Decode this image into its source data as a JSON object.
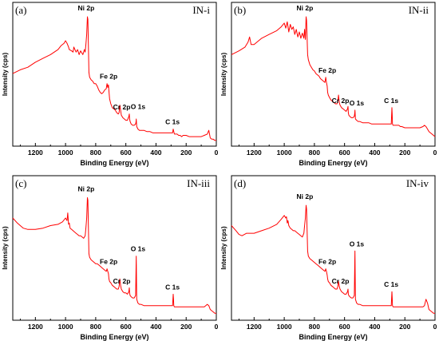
{
  "chart_data": [
    {
      "type": "line",
      "panel": "(a)",
      "sample": "IN-i",
      "xlabel": "Binding Energy (eV)",
      "ylabel": "Intensity (cps)",
      "xlim": [
        1350,
        0
      ],
      "x_reversed": true,
      "xticks": [
        1200,
        1000,
        800,
        600,
        400,
        200,
        0
      ],
      "color": "#ff0000",
      "series": [
        {
          "x": [
            1350,
            1300,
            1250,
            1200,
            1150,
            1100,
            1050,
            1030,
            1010,
            1000,
            990,
            980,
            975,
            960,
            950,
            945,
            930,
            920,
            910,
            900,
            885,
            875,
            870,
            865,
            860,
            855,
            852,
            845,
            840,
            830,
            820,
            810,
            800,
            790,
            780,
            770,
            760,
            750,
            740,
            730,
            725,
            720,
            715,
            712,
            708,
            700,
            690,
            680,
            670,
            660,
            650,
            645,
            640,
            635,
            630,
            620,
            610,
            600,
            590,
            580,
            577,
            575,
            572,
            565,
            555,
            545,
            535,
            532,
            531,
            528,
            520,
            510,
            500,
            480,
            460,
            440,
            420,
            400,
            380,
            360,
            340,
            320,
            300,
            290,
            286,
            284,
            282,
            278,
            270,
            260,
            250,
            240,
            230,
            220,
            200,
            180,
            160,
            140,
            120,
            100,
            80,
            60,
            50,
            40,
            30,
            20,
            10,
            0
          ],
          "y": [
            0.55,
            0.58,
            0.6,
            0.64,
            0.67,
            0.7,
            0.74,
            0.77,
            0.79,
            0.81,
            0.79,
            0.76,
            0.74,
            0.73,
            0.72,
            0.76,
            0.72,
            0.74,
            0.7,
            0.73,
            0.7,
            0.74,
            0.72,
            0.78,
            0.86,
            1.0,
            0.98,
            0.56,
            0.52,
            0.5,
            0.49,
            0.47,
            0.47,
            0.45,
            0.42,
            0.4,
            0.39,
            0.4,
            0.42,
            0.43,
            0.47,
            0.44,
            0.46,
            0.41,
            0.35,
            0.31,
            0.28,
            0.27,
            0.26,
            0.24,
            0.23,
            0.24,
            0.3,
            0.26,
            0.22,
            0.2,
            0.19,
            0.18,
            0.18,
            0.21,
            0.23,
            0.19,
            0.17,
            0.15,
            0.14,
            0.14,
            0.15,
            0.17,
            0.19,
            0.13,
            0.11,
            0.1,
            0.1,
            0.1,
            0.09,
            0.09,
            0.08,
            0.08,
            0.08,
            0.08,
            0.08,
            0.08,
            0.08,
            0.08,
            0.11,
            0.1,
            0.09,
            0.07,
            0.07,
            0.07,
            0.06,
            0.06,
            0.05,
            0.06,
            0.06,
            0.05,
            0.05,
            0.05,
            0.05,
            0.05,
            0.06,
            0.07,
            0.1,
            0.04,
            0.03,
            0.03,
            0.02,
            0.02
          ]
        }
      ],
      "annotations": [
        {
          "text": "Ni 2p",
          "x": 855,
          "y": 1.0
        },
        {
          "text": "Fe 2p",
          "x": 720,
          "y": 0.47
        },
        {
          "text": "O 1s",
          "x": 531,
          "y": 0.23
        },
        {
          "text": "Cr 2p",
          "x": 600,
          "y": 0.24
        },
        {
          "text": "C 1s",
          "x": 285,
          "y": 0.11
        }
      ]
    },
    {
      "type": "line",
      "panel": "(b)",
      "sample": "IN-ii",
      "xlabel": "Binding Energy (eV)",
      "ylabel": "Intensity (cps)",
      "xlim": [
        1350,
        0
      ],
      "x_reversed": true,
      "xticks": [
        1200,
        1000,
        800,
        600,
        400,
        200,
        0
      ],
      "color": "#ff0000",
      "series": [
        {
          "x": [
            1350,
            1300,
            1260,
            1240,
            1230,
            1220,
            1200,
            1150,
            1100,
            1050,
            1020,
            1000,
            990,
            980,
            970,
            960,
            950,
            940,
            930,
            920,
            910,
            900,
            890,
            880,
            870,
            865,
            860,
            855,
            852,
            845,
            840,
            830,
            820,
            810,
            800,
            790,
            780,
            770,
            760,
            750,
            740,
            730,
            725,
            720,
            715,
            712,
            708,
            700,
            690,
            680,
            670,
            660,
            650,
            645,
            640,
            635,
            630,
            620,
            610,
            600,
            590,
            580,
            577,
            575,
            572,
            565,
            555,
            545,
            535,
            532,
            531,
            528,
            520,
            510,
            500,
            480,
            460,
            440,
            420,
            400,
            380,
            360,
            340,
            320,
            300,
            290,
            286,
            284,
            282,
            278,
            270,
            260,
            250,
            240,
            230,
            220,
            200,
            180,
            160,
            140,
            120,
            100,
            80,
            70,
            60,
            50,
            40,
            30,
            20,
            10,
            0
          ],
          "y": [
            0.7,
            0.73,
            0.76,
            0.8,
            0.84,
            0.78,
            0.78,
            0.83,
            0.86,
            0.89,
            0.92,
            0.95,
            0.91,
            0.96,
            0.88,
            0.94,
            0.9,
            0.92,
            0.86,
            0.9,
            0.84,
            0.88,
            0.83,
            0.87,
            0.83,
            0.9,
            0.82,
            1.0,
            0.97,
            0.7,
            0.66,
            0.62,
            0.6,
            0.58,
            0.57,
            0.55,
            0.54,
            0.53,
            0.51,
            0.5,
            0.49,
            0.48,
            0.52,
            0.48,
            0.45,
            0.4,
            0.38,
            0.36,
            0.34,
            0.33,
            0.32,
            0.31,
            0.31,
            0.33,
            0.38,
            0.32,
            0.3,
            0.28,
            0.27,
            0.26,
            0.25,
            0.27,
            0.29,
            0.24,
            0.22,
            0.21,
            0.2,
            0.2,
            0.21,
            0.24,
            0.26,
            0.19,
            0.18,
            0.17,
            0.17,
            0.16,
            0.16,
            0.16,
            0.15,
            0.15,
            0.15,
            0.15,
            0.15,
            0.15,
            0.15,
            0.15,
            0.28,
            0.22,
            0.15,
            0.14,
            0.14,
            0.14,
            0.14,
            0.14,
            0.13,
            0.13,
            0.12,
            0.12,
            0.12,
            0.12,
            0.12,
            0.12,
            0.13,
            0.14,
            0.13,
            0.11,
            0.09,
            0.08,
            0.07,
            0.06,
            0.05
          ]
        }
      ],
      "annotations": [
        {
          "text": "Ni 2p",
          "x": 855,
          "y": 1.0
        },
        {
          "text": "Fe 2p",
          "x": 720,
          "y": 0.52
        },
        {
          "text": "O 1s",
          "x": 531,
          "y": 0.26
        },
        {
          "text": "Cr 2p",
          "x": 600,
          "y": 0.29
        },
        {
          "text": "C 1s",
          "x": 285,
          "y": 0.28
        }
      ]
    },
    {
      "type": "line",
      "panel": "(c)",
      "sample": "IN-iii",
      "xlabel": "Binding Energy (eV)",
      "ylabel": "Intensity (cps)",
      "xlim": [
        1350,
        0
      ],
      "x_reversed": true,
      "xticks": [
        1200,
        1000,
        800,
        600,
        400,
        200,
        0
      ],
      "color": "#ff0000",
      "series": [
        {
          "x": [
            1350,
            1320,
            1300,
            1280,
            1250,
            1200,
            1150,
            1100,
            1050,
            1020,
            1000,
            990,
            985,
            980,
            975,
            970,
            960,
            950,
            940,
            930,
            920,
            910,
            900,
            890,
            880,
            870,
            865,
            860,
            855,
            852,
            845,
            840,
            830,
            820,
            810,
            800,
            790,
            780,
            770,
            760,
            750,
            740,
            730,
            725,
            720,
            715,
            712,
            708,
            700,
            690,
            680,
            670,
            660,
            650,
            645,
            640,
            635,
            630,
            620,
            610,
            600,
            590,
            580,
            577,
            575,
            572,
            565,
            555,
            545,
            535,
            532,
            531,
            528,
            520,
            510,
            500,
            480,
            460,
            440,
            420,
            400,
            380,
            360,
            340,
            320,
            300,
            290,
            286,
            284,
            282,
            278,
            270,
            260,
            250,
            240,
            230,
            220,
            200,
            180,
            160,
            140,
            120,
            100,
            80,
            70,
            60,
            50,
            40,
            30,
            20,
            10,
            0
          ],
          "y": [
            0.78,
            0.74,
            0.72,
            0.7,
            0.69,
            0.69,
            0.7,
            0.72,
            0.73,
            0.75,
            0.78,
            0.76,
            0.82,
            0.73,
            0.74,
            0.7,
            0.69,
            0.68,
            0.67,
            0.66,
            0.65,
            0.64,
            0.64,
            0.63,
            0.62,
            0.64,
            0.7,
            0.78,
            0.94,
            0.92,
            0.5,
            0.47,
            0.45,
            0.44,
            0.43,
            0.42,
            0.42,
            0.41,
            0.4,
            0.39,
            0.38,
            0.37,
            0.36,
            0.38,
            0.36,
            0.34,
            0.3,
            0.28,
            0.27,
            0.25,
            0.24,
            0.23,
            0.22,
            0.22,
            0.24,
            0.3,
            0.25,
            0.22,
            0.2,
            0.19,
            0.19,
            0.18,
            0.2,
            0.23,
            0.19,
            0.17,
            0.16,
            0.15,
            0.15,
            0.17,
            0.4,
            0.48,
            0.14,
            0.11,
            0.1,
            0.1,
            0.09,
            0.09,
            0.09,
            0.09,
            0.09,
            0.09,
            0.09,
            0.09,
            0.09,
            0.09,
            0.09,
            0.18,
            0.14,
            0.09,
            0.08,
            0.08,
            0.08,
            0.08,
            0.08,
            0.08,
            0.08,
            0.08,
            0.08,
            0.08,
            0.08,
            0.08,
            0.08,
            0.08,
            0.09,
            0.1,
            0.09,
            0.06,
            0.05,
            0.04,
            0.03,
            0.03
          ]
        }
      ],
      "annotations": [
        {
          "text": "Ni 2p",
          "x": 855,
          "y": 0.94
        },
        {
          "text": "Fe 2p",
          "x": 720,
          "y": 0.38
        },
        {
          "text": "O 1s",
          "x": 531,
          "y": 0.48
        },
        {
          "text": "Cr 2p",
          "x": 600,
          "y": 0.24
        },
        {
          "text": "C 1s",
          "x": 285,
          "y": 0.18
        }
      ]
    },
    {
      "type": "line",
      "panel": "(d)",
      "sample": "IN-iv",
      "xlabel": "Binding Energy (eV)",
      "ylabel": "Intensity (cps)",
      "xlim": [
        1350,
        0
      ],
      "x_reversed": true,
      "xticks": [
        1200,
        1000,
        800,
        600,
        400,
        200,
        0
      ],
      "color": "#ff0000",
      "series": [
        {
          "x": [
            1350,
            1320,
            1300,
            1280,
            1250,
            1200,
            1150,
            1100,
            1050,
            1020,
            1000,
            990,
            985,
            980,
            975,
            970,
            960,
            950,
            940,
            930,
            920,
            910,
            900,
            890,
            880,
            870,
            865,
            860,
            855,
            852,
            845,
            840,
            830,
            820,
            810,
            800,
            790,
            780,
            770,
            760,
            750,
            740,
            730,
            725,
            720,
            715,
            712,
            708,
            700,
            690,
            680,
            670,
            660,
            650,
            645,
            640,
            635,
            630,
            620,
            610,
            600,
            590,
            580,
            577,
            575,
            572,
            565,
            555,
            545,
            535,
            532,
            531,
            528,
            520,
            510,
            500,
            480,
            460,
            440,
            420,
            400,
            380,
            360,
            340,
            320,
            300,
            290,
            286,
            284,
            282,
            278,
            270,
            260,
            250,
            240,
            230,
            220,
            200,
            180,
            160,
            140,
            120,
            100,
            80,
            70,
            60,
            50,
            40,
            30,
            20,
            10,
            0
          ],
          "y": [
            0.72,
            0.68,
            0.65,
            0.64,
            0.66,
            0.66,
            0.68,
            0.7,
            0.73,
            0.77,
            0.8,
            0.78,
            0.79,
            0.74,
            0.76,
            0.72,
            0.7,
            0.69,
            0.68,
            0.68,
            0.67,
            0.66,
            0.65,
            0.64,
            0.63,
            0.66,
            0.72,
            0.78,
            0.88,
            0.85,
            0.52,
            0.48,
            0.46,
            0.45,
            0.44,
            0.43,
            0.42,
            0.41,
            0.4,
            0.39,
            0.38,
            0.37,
            0.36,
            0.38,
            0.36,
            0.33,
            0.3,
            0.28,
            0.27,
            0.25,
            0.24,
            0.23,
            0.22,
            0.22,
            0.24,
            0.28,
            0.24,
            0.22,
            0.2,
            0.19,
            0.18,
            0.18,
            0.2,
            0.22,
            0.18,
            0.17,
            0.16,
            0.15,
            0.15,
            0.17,
            0.44,
            0.52,
            0.14,
            0.11,
            0.1,
            0.1,
            0.09,
            0.09,
            0.09,
            0.09,
            0.09,
            0.09,
            0.09,
            0.09,
            0.09,
            0.09,
            0.09,
            0.2,
            0.15,
            0.09,
            0.08,
            0.08,
            0.08,
            0.08,
            0.08,
            0.08,
            0.08,
            0.08,
            0.08,
            0.08,
            0.08,
            0.08,
            0.08,
            0.08,
            0.09,
            0.14,
            0.11,
            0.06,
            0.05,
            0.04,
            0.03,
            0.03
          ]
        }
      ],
      "annotations": [
        {
          "text": "Ni 2p",
          "x": 855,
          "y": 0.88
        },
        {
          "text": "Fe 2p",
          "x": 720,
          "y": 0.38
        },
        {
          "text": "O 1s",
          "x": 531,
          "y": 0.52
        },
        {
          "text": "Cr 2p",
          "x": 600,
          "y": 0.24
        },
        {
          "text": "C 1s",
          "x": 285,
          "y": 0.2
        }
      ]
    }
  ]
}
